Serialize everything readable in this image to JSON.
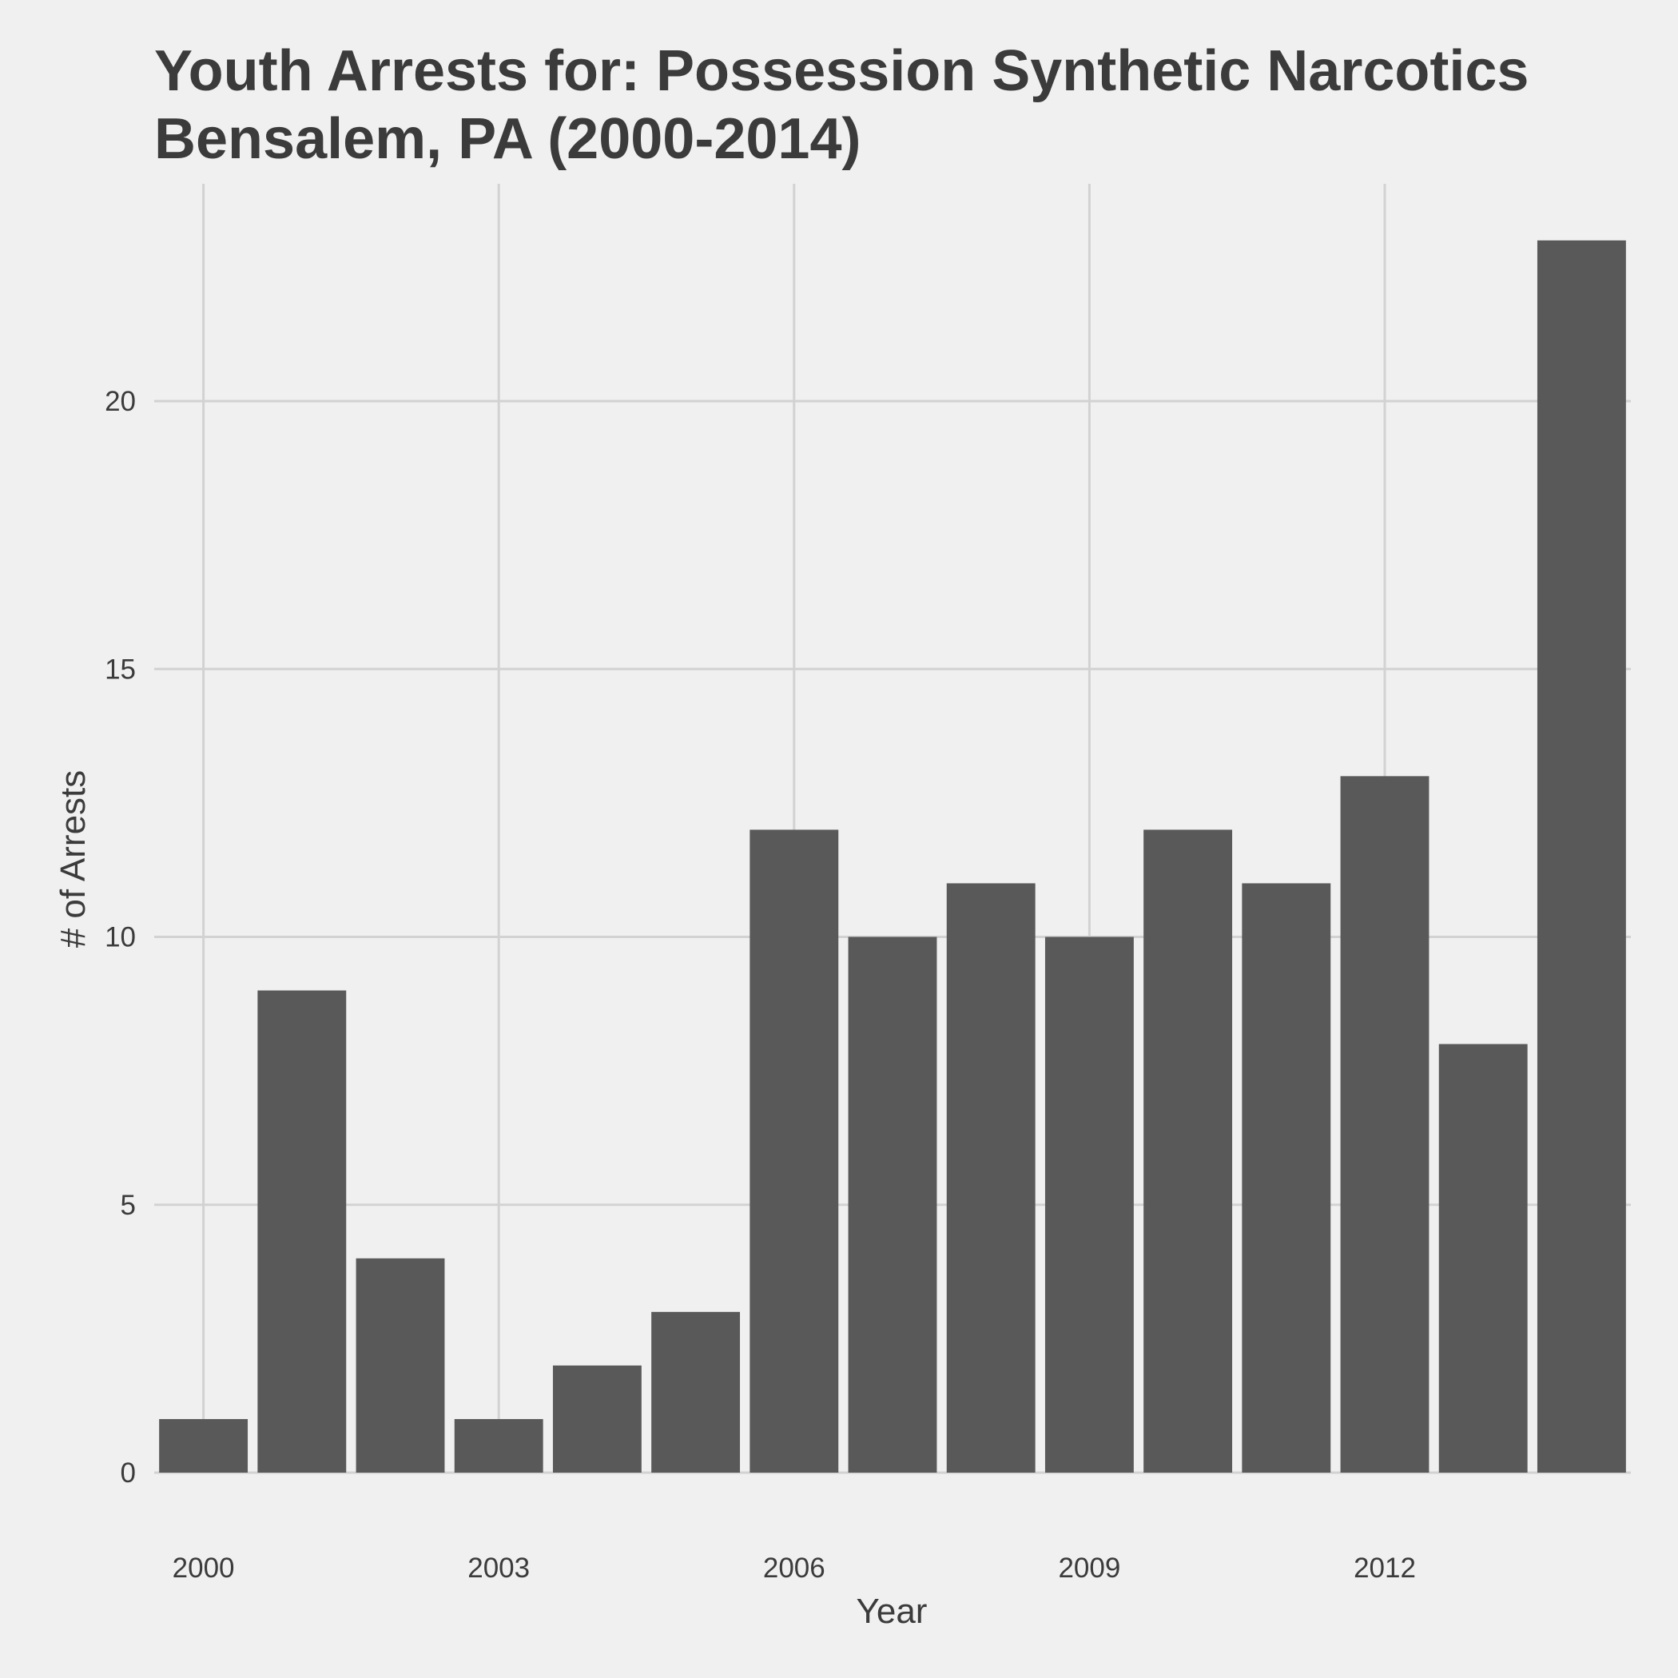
{
  "chart_data": {
    "type": "bar",
    "title_lines": [
      "Youth Arrests for: Possession Synthetic Narcotics",
      "Bensalem, PA (2000-2014)"
    ],
    "xlabel": "Year",
    "ylabel": "# of Arrests",
    "x": [
      2000,
      2001,
      2002,
      2003,
      2004,
      2005,
      2006,
      2007,
      2008,
      2009,
      2010,
      2011,
      2012,
      2013,
      2014
    ],
    "values": [
      1,
      9,
      4,
      1,
      2,
      3,
      12,
      10,
      11,
      10,
      12,
      11,
      13,
      8,
      23
    ],
    "x_ticks": [
      "2000",
      "2003",
      "2006",
      "2009",
      "2012"
    ],
    "x_tick_values": [
      2000,
      2003,
      2006,
      2009,
      2012
    ],
    "y_ticks": [
      "0",
      "5",
      "10",
      "15",
      "20"
    ],
    "y_tick_values": [
      0,
      5,
      10,
      15,
      20
    ],
    "ylim": [
      0,
      23
    ],
    "grid": true,
    "legend": "none",
    "colors": {
      "background": "#f0f0f0",
      "bar": "#595959",
      "grid": "#d2d2d2",
      "text": "#3b3b3b"
    }
  }
}
